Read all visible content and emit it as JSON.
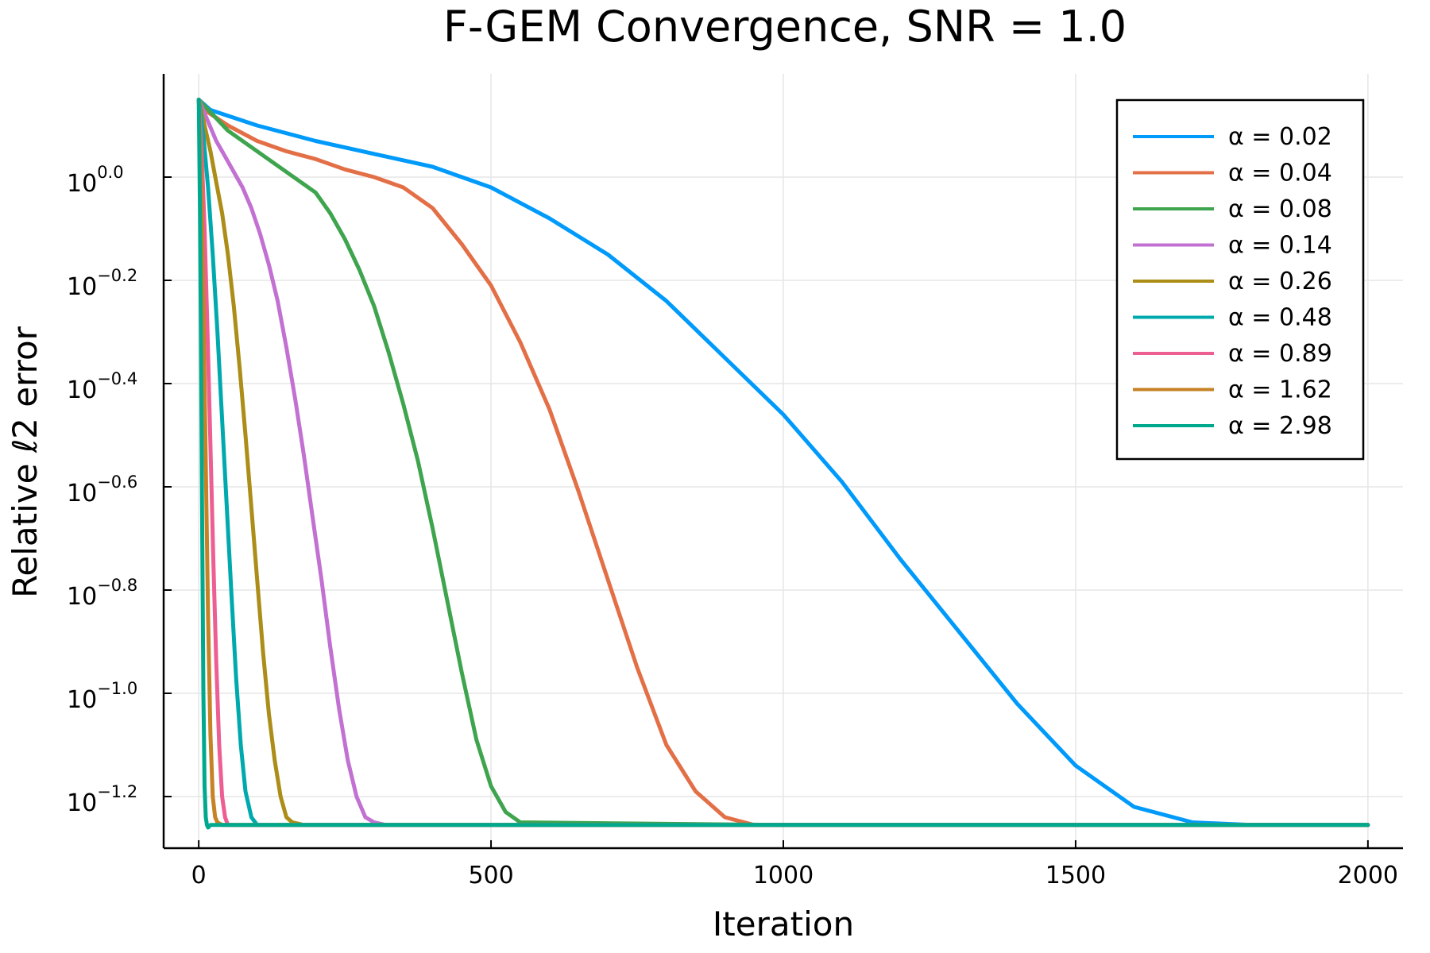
{
  "chart_data": {
    "type": "line",
    "title": "F-GEM Convergence, SNR = 1.0",
    "xlabel": "Iteration",
    "ylabel": "Relative ℓ2 error",
    "y_scale": "log10",
    "xlim": [
      -60,
      2060
    ],
    "ylim_log10": [
      -1.3,
      0.2
    ],
    "x_ticks": [
      0,
      500,
      1000,
      1500,
      2000
    ],
    "x_tick_labels": [
      "0",
      "500",
      "1000",
      "1500",
      "2000"
    ],
    "y_ticks_log10": [
      0.0,
      -0.2,
      -0.4,
      -0.6,
      -0.8,
      -1.0,
      -1.2
    ],
    "y_tick_base": "10",
    "y_tick_exponents": [
      "0.0",
      "−0.2",
      "−0.4",
      "−0.6",
      "−0.8",
      "−1.0",
      "−1.2"
    ],
    "grid": true,
    "legend_position": "top-right",
    "series": [
      {
        "name": "α = 0.02",
        "color": "#009AFA",
        "x": [
          0,
          20,
          100,
          200,
          300,
          400,
          500,
          600,
          700,
          800,
          900,
          1000,
          1100,
          1200,
          1300,
          1400,
          1500,
          1600,
          1700,
          1800,
          1900,
          2000
        ],
        "log10_error": [
          0.15,
          0.13,
          0.1,
          0.07,
          0.045,
          0.02,
          -0.02,
          -0.08,
          -0.15,
          -0.24,
          -0.35,
          -0.46,
          -0.59,
          -0.74,
          -0.88,
          -1.02,
          -1.14,
          -1.22,
          -1.25,
          -1.255,
          -1.255,
          -1.255
        ]
      },
      {
        "name": "α = 0.04",
        "color": "#E36F47",
        "x": [
          0,
          10,
          50,
          100,
          150,
          200,
          250,
          300,
          350,
          400,
          450,
          500,
          550,
          600,
          650,
          700,
          750,
          800,
          850,
          900,
          950,
          1000,
          1500,
          2000
        ],
        "log10_error": [
          0.15,
          0.13,
          0.1,
          0.07,
          0.05,
          0.035,
          0.015,
          0.0,
          -0.02,
          -0.06,
          -0.13,
          -0.21,
          -0.32,
          -0.45,
          -0.61,
          -0.78,
          -0.95,
          -1.1,
          -1.19,
          -1.24,
          -1.255,
          -1.255,
          -1.255,
          -1.255
        ]
      },
      {
        "name": "α = 0.08",
        "color": "#3EA44E",
        "x": [
          0,
          25,
          50,
          75,
          100,
          125,
          150,
          175,
          200,
          225,
          250,
          275,
          300,
          325,
          350,
          375,
          400,
          425,
          450,
          475,
          500,
          525,
          550,
          1000,
          2000
        ],
        "log10_error": [
          0.15,
          0.12,
          0.09,
          0.07,
          0.05,
          0.03,
          0.01,
          -0.01,
          -0.03,
          -0.07,
          -0.12,
          -0.18,
          -0.25,
          -0.34,
          -0.44,
          -0.55,
          -0.68,
          -0.82,
          -0.96,
          -1.09,
          -1.18,
          -1.23,
          -1.25,
          -1.255,
          -1.255
        ]
      },
      {
        "name": "α = 0.14",
        "color": "#C271D2",
        "x": [
          0,
          15,
          30,
          45,
          60,
          75,
          90,
          105,
          120,
          135,
          150,
          165,
          180,
          195,
          210,
          225,
          240,
          255,
          270,
          285,
          300,
          320,
          500,
          2000
        ],
        "log10_error": [
          0.15,
          0.11,
          0.07,
          0.04,
          0.01,
          -0.02,
          -0.06,
          -0.11,
          -0.17,
          -0.24,
          -0.33,
          -0.43,
          -0.54,
          -0.66,
          -0.78,
          -0.91,
          -1.03,
          -1.13,
          -1.2,
          -1.24,
          -1.25,
          -1.255,
          -1.255,
          -1.255
        ]
      },
      {
        "name": "α = 0.26",
        "color": "#AC8D18",
        "x": [
          0,
          10,
          20,
          30,
          40,
          50,
          60,
          70,
          80,
          90,
          100,
          110,
          120,
          130,
          140,
          150,
          160,
          180,
          500,
          2000
        ],
        "log10_error": [
          0.15,
          0.1,
          0.05,
          -0.01,
          -0.07,
          -0.15,
          -0.25,
          -0.37,
          -0.5,
          -0.64,
          -0.78,
          -0.92,
          -1.04,
          -1.13,
          -1.2,
          -1.24,
          -1.25,
          -1.255,
          -1.255,
          -1.255
        ]
      },
      {
        "name": "α = 0.48",
        "color": "#00A9AD",
        "x": [
          0,
          8,
          16,
          24,
          32,
          40,
          48,
          56,
          64,
          72,
          80,
          90,
          100,
          500,
          2000
        ],
        "log10_error": [
          0.15,
          0.08,
          -0.02,
          -0.15,
          -0.3,
          -0.47,
          -0.64,
          -0.81,
          -0.97,
          -1.1,
          -1.19,
          -1.24,
          -1.255,
          -1.255,
          -1.255
        ]
      },
      {
        "name": "α = 0.89",
        "color": "#ED5E93",
        "x": [
          0,
          5,
          10,
          15,
          20,
          25,
          30,
          35,
          40,
          45,
          50,
          60,
          500,
          2000
        ],
        "log10_error": [
          0.15,
          0.05,
          -0.1,
          -0.3,
          -0.52,
          -0.74,
          -0.94,
          -1.1,
          -1.2,
          -1.24,
          -1.255,
          -1.255,
          -1.255,
          -1.255
        ]
      },
      {
        "name": "α = 1.62",
        "color": "#C68225",
        "x": [
          0,
          4,
          8,
          12,
          16,
          20,
          24,
          28,
          32,
          40,
          500,
          2000
        ],
        "log10_error": [
          0.15,
          0.0,
          -0.25,
          -0.55,
          -0.85,
          -1.08,
          -1.2,
          -1.24,
          -1.25,
          -1.255,
          -1.255,
          -1.255
        ]
      },
      {
        "name": "α = 2.98",
        "color": "#00A98D",
        "x": [
          0,
          2,
          4,
          6,
          8,
          10,
          12,
          14,
          16,
          20,
          500,
          2000
        ],
        "log10_error": [
          0.15,
          -0.05,
          -0.35,
          -0.7,
          -1.0,
          -1.18,
          -1.24,
          -1.255,
          -1.26,
          -1.255,
          -1.255,
          -1.255
        ]
      }
    ]
  }
}
